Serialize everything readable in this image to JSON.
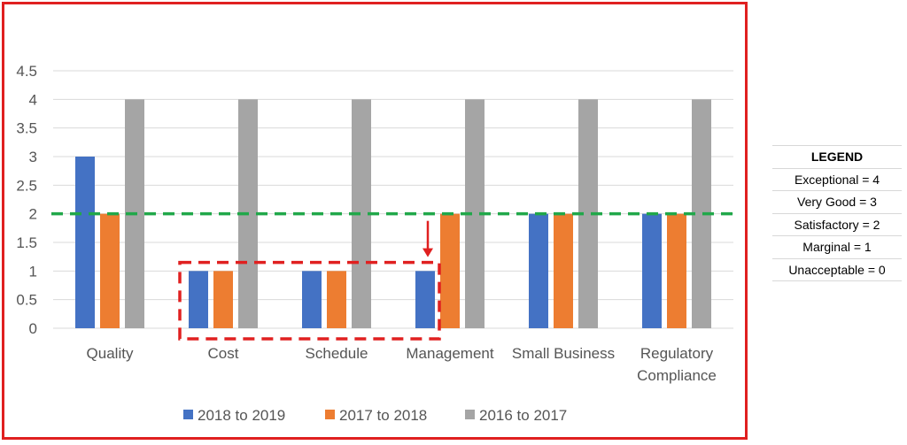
{
  "chart_data": {
    "type": "bar",
    "categories": [
      [
        "Quality"
      ],
      [
        "Cost"
      ],
      [
        "Schedule"
      ],
      [
        "Management"
      ],
      [
        "Small Business"
      ],
      [
        "Regulatory",
        "Compliance"
      ]
    ],
    "series": [
      {
        "name": "2018 to 2019",
        "color": "#4472c4",
        "values": [
          3,
          1,
          1,
          1,
          2,
          2
        ]
      },
      {
        "name": "2017 to 2018",
        "color": "#ed7d31",
        "values": [
          2,
          1,
          1,
          2,
          2,
          2
        ]
      },
      {
        "name": "2016 to 2017",
        "color": "#a5a5a5",
        "values": [
          4,
          4,
          4,
          4,
          4,
          4
        ]
      }
    ],
    "ylim": [
      0,
      4.5
    ],
    "yticks": [
      "0",
      "0.5",
      "1",
      "1.5",
      "2",
      "2.5",
      "3",
      "3.5",
      "4",
      "4.5"
    ],
    "threshold": {
      "value": 2,
      "color": "#21a84a"
    },
    "highlight": {
      "categories": [
        "Cost",
        "Schedule",
        "Management"
      ],
      "color": "#e02020"
    },
    "grid": true,
    "legend_position": "bottom"
  },
  "legend_table": {
    "title": "LEGEND",
    "rows": [
      "Exceptional = 4",
      "Very Good = 3",
      "Satisfactory = 2",
      "Marginal = 1",
      "Unacceptable = 0"
    ]
  }
}
